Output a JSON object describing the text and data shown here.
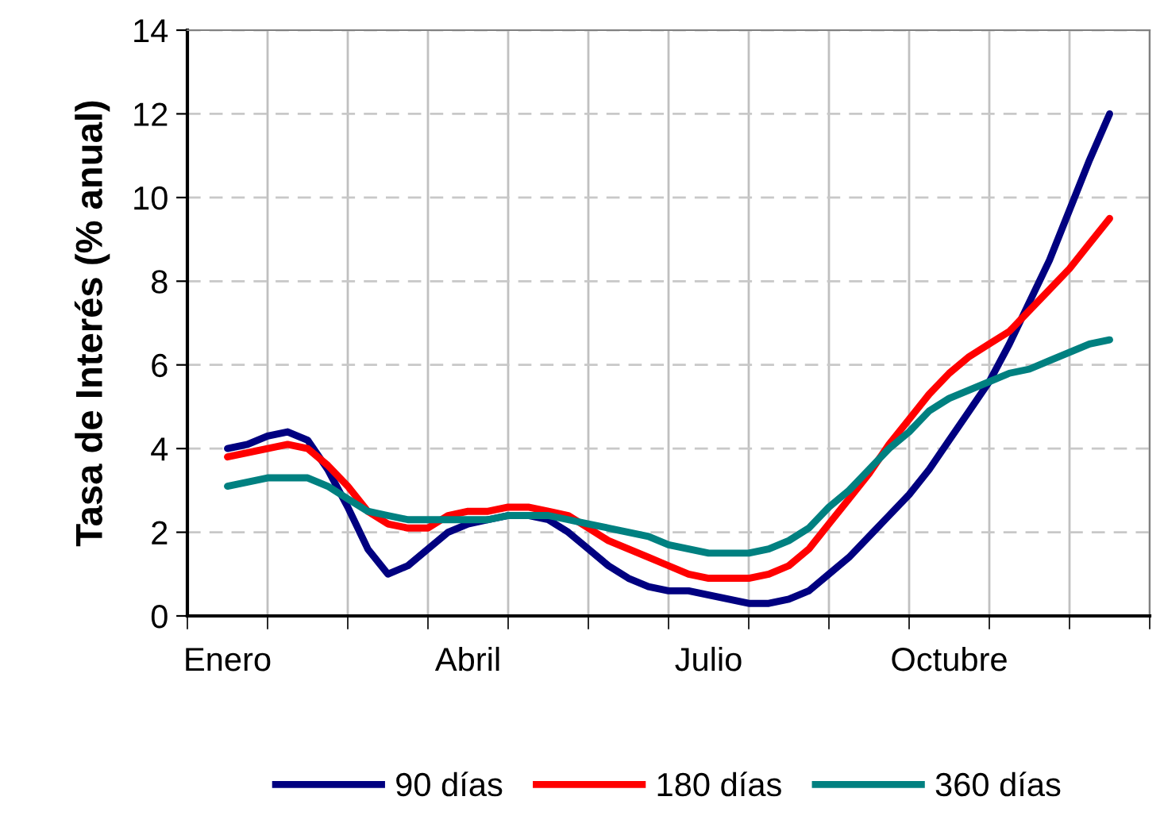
{
  "chart_data": {
    "type": "line",
    "ylabel": "Tasa de Interés (% anual)",
    "categories": [
      "Enero",
      null,
      null,
      null,
      null,
      null,
      null,
      null,
      null,
      null,
      null,
      null,
      "Abril",
      null,
      null,
      null,
      null,
      null,
      null,
      null,
      null,
      null,
      null,
      null,
      "Julio",
      null,
      null,
      null,
      null,
      null,
      null,
      null,
      null,
      null,
      null,
      null,
      "Octubre",
      null,
      null,
      null,
      null,
      null,
      null,
      null,
      null
    ],
    "series": [
      {
        "name": "90 días",
        "color": "#000080",
        "values": [
          4.0,
          4.1,
          4.3,
          4.4,
          4.2,
          3.5,
          2.6,
          1.6,
          1.0,
          1.2,
          1.6,
          2.0,
          2.2,
          2.3,
          2.4,
          2.4,
          2.3,
          2.0,
          1.6,
          1.2,
          0.9,
          0.7,
          0.6,
          0.6,
          0.5,
          0.4,
          0.3,
          0.3,
          0.4,
          0.6,
          1.0,
          1.4,
          1.9,
          2.4,
          2.9,
          3.5,
          4.2,
          4.9,
          5.6,
          6.5,
          7.5,
          8.5,
          9.7,
          10.9,
          12.0
        ]
      },
      {
        "name": "180 días",
        "color": "#ff0000",
        "values": [
          3.8,
          3.9,
          4.0,
          4.1,
          4.0,
          3.6,
          3.1,
          2.5,
          2.2,
          2.1,
          2.1,
          2.4,
          2.5,
          2.5,
          2.6,
          2.6,
          2.5,
          2.4,
          2.1,
          1.8,
          1.6,
          1.4,
          1.2,
          1.0,
          0.9,
          0.9,
          0.9,
          1.0,
          1.2,
          1.6,
          2.2,
          2.8,
          3.4,
          4.1,
          4.7,
          5.3,
          5.8,
          6.2,
          6.5,
          6.8,
          7.3,
          7.8,
          8.3,
          8.9,
          9.5
        ]
      },
      {
        "name": "360 días",
        "color": "#008080",
        "values": [
          3.1,
          3.2,
          3.3,
          3.3,
          3.3,
          3.1,
          2.8,
          2.5,
          2.4,
          2.3,
          2.3,
          2.3,
          2.3,
          2.3,
          2.4,
          2.4,
          2.4,
          2.3,
          2.2,
          2.1,
          2.0,
          1.9,
          1.7,
          1.6,
          1.5,
          1.5,
          1.5,
          1.6,
          1.8,
          2.1,
          2.6,
          3.0,
          3.5,
          4.0,
          4.4,
          4.9,
          5.2,
          5.4,
          5.6,
          5.8,
          5.9,
          6.1,
          6.3,
          6.5,
          6.6
        ]
      }
    ],
    "ylim": [
      0,
      14
    ],
    "yticks": [
      0,
      2,
      4,
      6,
      8,
      10,
      12,
      14
    ],
    "grid": true,
    "legend": "bottom",
    "marker": "none",
    "line_style": "solid"
  }
}
